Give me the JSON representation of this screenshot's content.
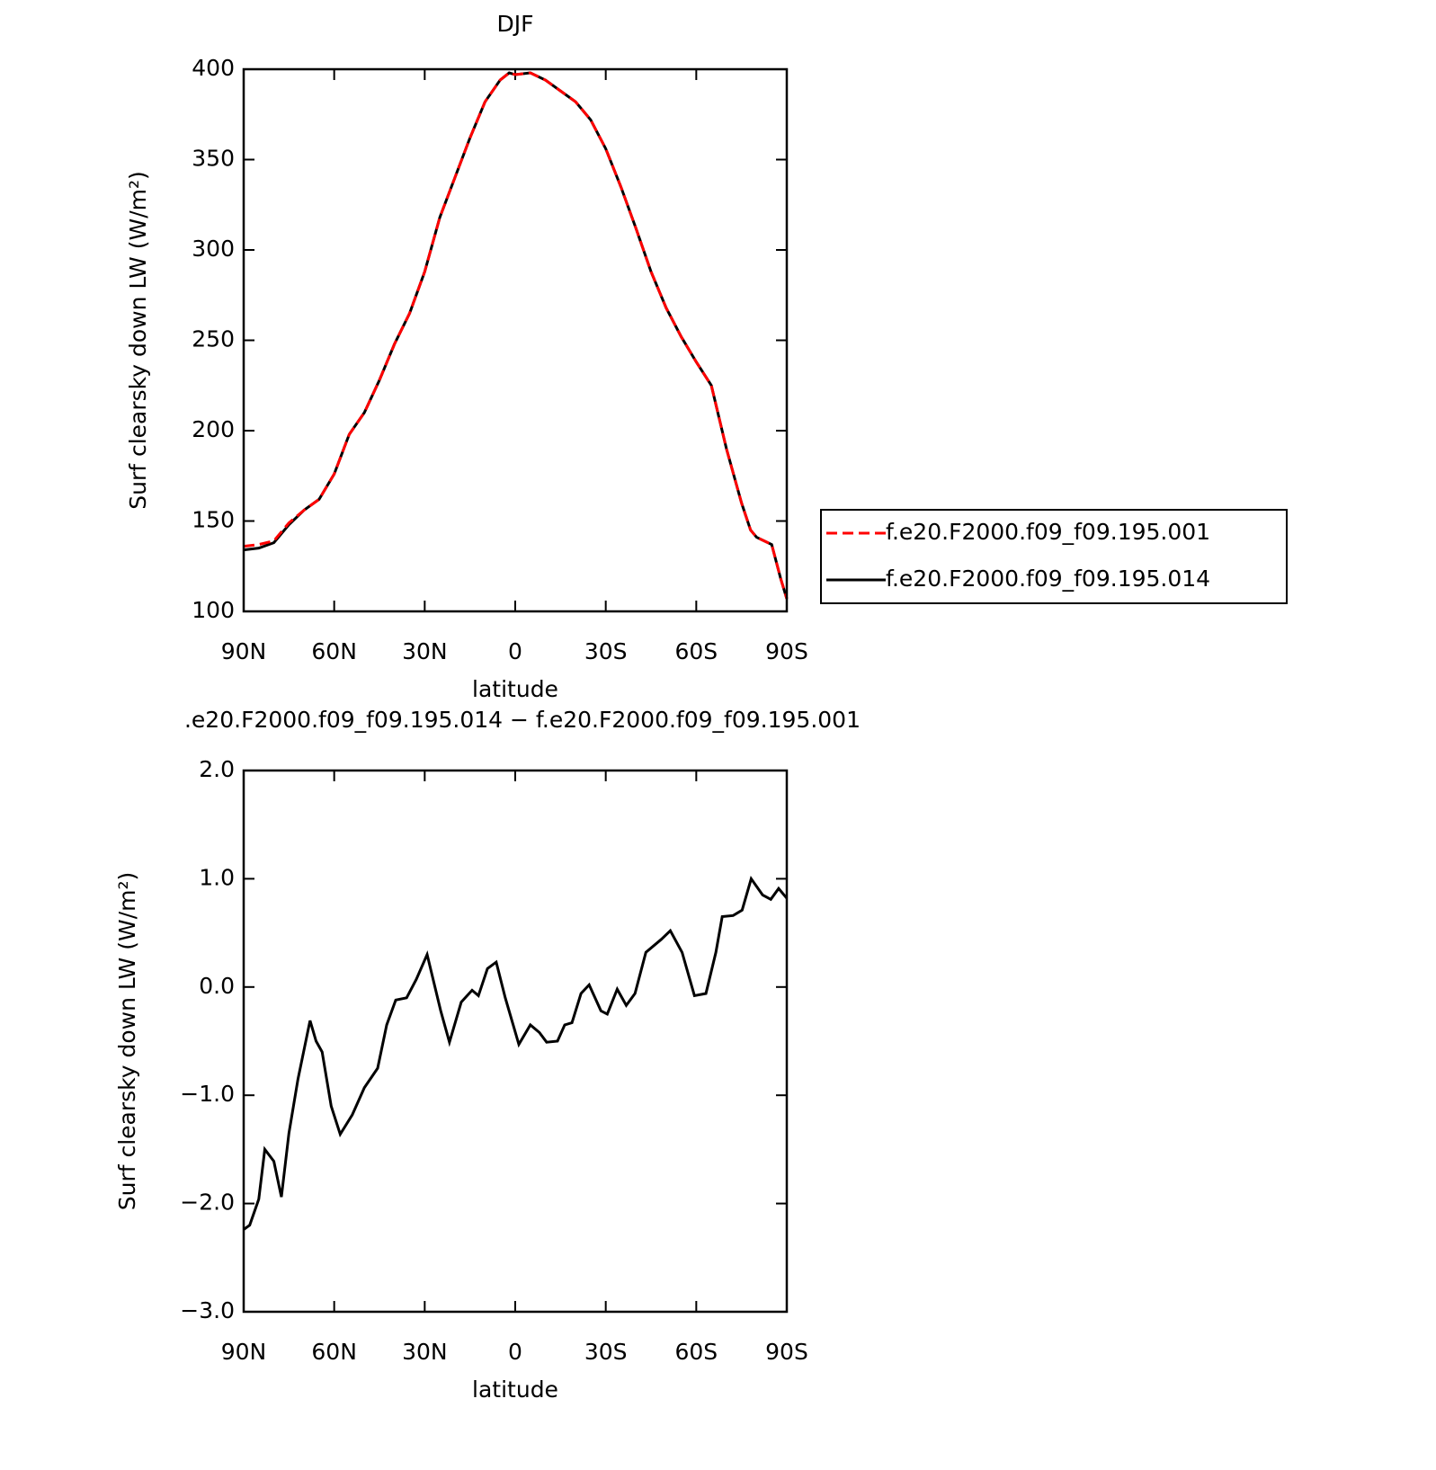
{
  "chart_data": [
    {
      "type": "line",
      "title": "DJF",
      "xlabel": "latitude",
      "ylabel": "Surf clearsky down LW (W/m²)",
      "x": [
        90,
        85,
        80,
        75,
        70,
        65,
        60,
        55,
        50,
        45,
        40,
        35,
        30,
        25,
        20,
        15,
        10,
        5,
        2,
        0,
        -5,
        -10,
        -15,
        -20,
        -25,
        -30,
        -35,
        -40,
        -45,
        -50,
        -55,
        -60,
        -65,
        -70,
        -75,
        -78,
        -80,
        -85,
        -88,
        -90
      ],
      "series": [
        {
          "name": "f.e20.F2000.f09_f09.195.001",
          "color": "#ff0000",
          "linestyle": "dashed",
          "values": [
            136,
            137,
            139,
            149,
            156,
            162,
            176,
            198,
            210,
            228,
            248,
            265,
            288,
            318,
            340,
            362,
            382,
            394,
            398,
            397,
            398,
            394,
            388,
            382,
            372,
            356,
            335,
            312,
            288,
            268,
            252,
            238,
            225,
            190,
            160,
            145,
            141,
            137,
            118,
            107
          ]
        },
        {
          "name": "f.e20.F2000.f09_f09.195.014",
          "color": "#000000",
          "linestyle": "solid",
          "values": [
            134,
            135,
            138,
            148,
            156,
            162,
            176,
            198,
            210,
            228,
            248,
            265,
            288,
            318,
            340,
            362,
            382,
            394,
            398,
            397,
            398,
            394,
            388,
            382,
            372,
            356,
            335,
            312,
            288,
            268,
            252,
            238,
            225,
            190,
            160,
            145,
            141,
            137,
            118,
            107
          ]
        }
      ],
      "xlim": [
        90,
        -90
      ],
      "xticks": [
        {
          "value": 90,
          "label": "90N"
        },
        {
          "value": 60,
          "label": "60N"
        },
        {
          "value": 30,
          "label": "30N"
        },
        0,
        {
          "value": -30,
          "label": "30S"
        },
        {
          "value": -60,
          "label": "60S"
        },
        {
          "value": -90,
          "label": "90S"
        }
      ],
      "ylim": [
        100,
        400
      ],
      "yticks": [
        100,
        150,
        200,
        250,
        300,
        350,
        400
      ],
      "legend": "right"
    },
    {
      "type": "line",
      "title": ".e20.F2000.f09_f09.195.014 − f.e20.F2000.f09_f09.195.001",
      "xlabel": "latitude",
      "ylabel": "Surf clearsky down LW (W/m²)",
      "x": [
        90,
        88,
        85,
        83,
        80,
        77.5,
        75,
        72,
        68,
        66,
        64,
        61,
        58,
        54,
        50,
        45.6,
        42.6,
        39.6,
        36,
        32.8,
        29.2,
        24.7,
        21.8,
        17.9,
        14.3,
        12.2,
        9.2,
        6.3,
        3.3,
        -1.2,
        -5,
        -8,
        -10.4,
        -14,
        -16.4,
        -18.8,
        -21.8,
        -24.5,
        -28.4,
        -30.5,
        -33.8,
        -36.8,
        -39.7,
        -43.3,
        -48.4,
        -51.4,
        -55.3,
        -59.4,
        -63.2,
        -66.5,
        -68.6,
        -72.2,
        -75.2,
        -78.2,
        -82,
        -84.7,
        -87.3,
        -90
      ],
      "color": "#000000",
      "values": [
        -2.24,
        -2.2,
        -1.96,
        -1.5,
        -1.61,
        -1.94,
        -1.35,
        -0.85,
        -0.31,
        -0.5,
        -0.6,
        -1.1,
        -1.36,
        -1.18,
        -0.93,
        -0.75,
        -0.35,
        -0.12,
        -0.1,
        0.07,
        0.3,
        -0.22,
        -0.51,
        -0.14,
        -0.03,
        -0.08,
        0.17,
        0.23,
        -0.1,
        -0.53,
        -0.35,
        -0.42,
        -0.51,
        -0.5,
        -0.35,
        -0.33,
        -0.06,
        0.02,
        -0.22,
        -0.25,
        -0.02,
        -0.17,
        -0.06,
        0.32,
        0.44,
        0.52,
        0.32,
        -0.08,
        -0.06,
        0.32,
        0.65,
        0.66,
        0.71,
        1.0,
        0.85,
        0.81,
        0.91,
        0.82
      ],
      "xlim": [
        90,
        -90
      ],
      "xticks": [
        {
          "value": 90,
          "label": "90N"
        },
        {
          "value": 60,
          "label": "60N"
        },
        {
          "value": 30,
          "label": "30N"
        },
        0,
        {
          "value": -30,
          "label": "30S"
        },
        {
          "value": -60,
          "label": "60S"
        },
        {
          "value": -90,
          "label": "90S"
        }
      ],
      "ylim": [
        -3,
        2
      ],
      "yticks": [
        {
          "value": -3,
          "label": "−3.0"
        },
        {
          "value": -2,
          "label": "−2.0"
        },
        {
          "value": -1,
          "label": "−1.0"
        },
        {
          "value": 0,
          "label": "0.0"
        },
        {
          "value": 1,
          "label": "1.0"
        },
        {
          "value": 2,
          "label": "2.0"
        }
      ]
    }
  ]
}
